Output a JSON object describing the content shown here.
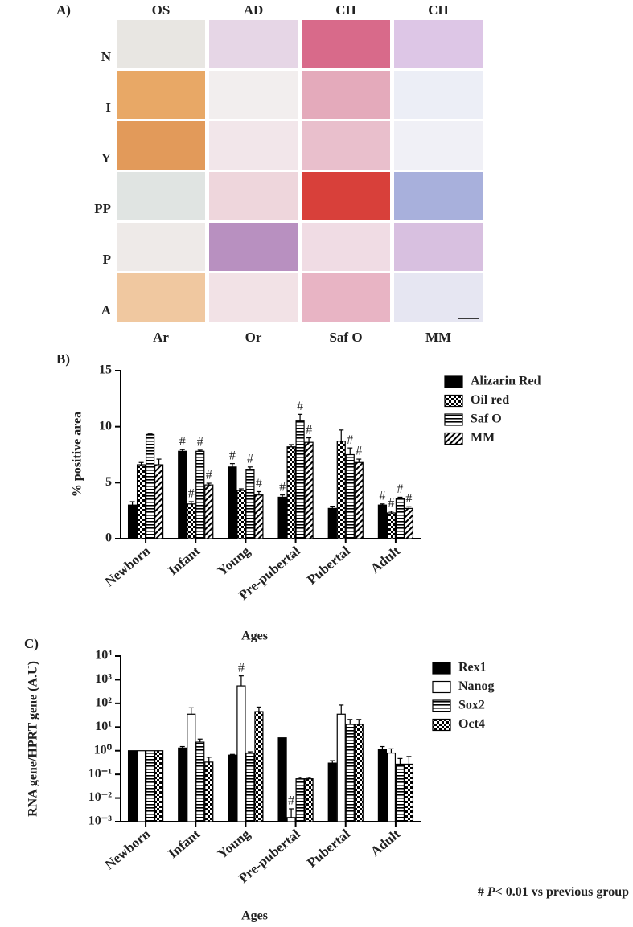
{
  "panel_a": {
    "panel_label": "A)",
    "column_headers": [
      "OS",
      "AD",
      "CH",
      "CH"
    ],
    "row_labels": [
      "N",
      "I",
      "Y",
      "PP",
      "P",
      "A"
    ],
    "stain_labels": [
      "Ar",
      "Or",
      "Saf O",
      "MM"
    ]
  },
  "chart_data": [
    {
      "type": "bar",
      "panel_label": "B)",
      "y_label": "% positive area",
      "x_label": "Ages",
      "categories": [
        "Newborn",
        "Infant",
        "Young",
        "Pre-pubertal",
        "Pubertal",
        "Adult"
      ],
      "ylim": [
        0,
        15
      ],
      "yticks": [
        0,
        5,
        10,
        15
      ],
      "log": false,
      "series": [
        {
          "name": "Alizarin Red",
          "color": "#000000",
          "pattern": "solid",
          "values": [
            3.0,
            7.8,
            6.4,
            3.7,
            2.7,
            3.0
          ],
          "errors": [
            0.3,
            0.15,
            0.3,
            0.2,
            0.2,
            0.1
          ],
          "markers": [
            null,
            "#",
            "#",
            "#",
            null,
            "#"
          ]
        },
        {
          "name": "Oil red",
          "color": "#000000",
          "pattern": "checker",
          "values": [
            6.6,
            3.1,
            4.3,
            8.2,
            8.7,
            2.3
          ],
          "errors": [
            0.2,
            0.2,
            0.15,
            0.2,
            1.0,
            0.15
          ],
          "markers": [
            null,
            "#",
            null,
            null,
            null,
            "#"
          ]
        },
        {
          "name": "Saf O",
          "color": "#000000",
          "pattern": "hstripe",
          "values": [
            9.3,
            7.8,
            6.2,
            10.5,
            7.5,
            3.6
          ],
          "errors": [
            0.05,
            0.1,
            0.2,
            0.6,
            0.6,
            0.1
          ],
          "markers": [
            null,
            "#",
            "#",
            "#",
            "#",
            "#"
          ]
        },
        {
          "name": "MM",
          "color": "#000000",
          "pattern": "diag",
          "values": [
            6.6,
            4.8,
            3.9,
            8.6,
            6.8,
            2.7
          ],
          "errors": [
            0.5,
            0.15,
            0.3,
            0.4,
            0.3,
            0.15
          ],
          "markers": [
            null,
            "#",
            "#",
            "#",
            "#",
            "#"
          ]
        }
      ]
    },
    {
      "type": "bar",
      "panel_label": "C)",
      "y_label": "RNA gene/HPRT gene (A.U)",
      "x_label": "Ages",
      "categories": [
        "Newborn",
        "Infant",
        "Young",
        "Pre-pubertal",
        "Pubertal",
        "Adult"
      ],
      "ylim": [
        0.001,
        10000
      ],
      "log": true,
      "yticks": [
        {
          "value": 0.001,
          "label": "10⁻³"
        },
        {
          "value": 0.01,
          "label": "10⁻²"
        },
        {
          "value": 0.1,
          "label": "10⁻¹"
        },
        {
          "value": 1,
          "label": "10⁰"
        },
        {
          "value": 10,
          "label": "10¹"
        },
        {
          "value": 100,
          "label": "10²"
        },
        {
          "value": 1000,
          "label": "10³"
        },
        {
          "value": 10000,
          "label": "10⁴"
        }
      ],
      "series": [
        {
          "name": "Rex1",
          "color": "#000000",
          "pattern": "solid",
          "values": [
            1,
            1.3,
            0.65,
            3.5,
            0.3,
            1.1
          ],
          "errors": [
            0,
            0.2,
            0.05,
            0,
            0.08,
            0.4
          ],
          "markers": [
            null,
            null,
            null,
            null,
            null,
            null
          ]
        },
        {
          "name": "Nanog",
          "color": "#ffffff",
          "pattern": "solid",
          "values": [
            1,
            35,
            550,
            0.0015,
            35,
            0.8
          ],
          "errors": [
            0,
            30,
            900,
            0.002,
            50,
            0.4
          ],
          "markers": [
            null,
            null,
            "#",
            "#",
            null,
            null
          ]
        },
        {
          "name": "Sox2",
          "color": "#000000",
          "pattern": "hstripe",
          "values": [
            1,
            2.3,
            0.8,
            0.065,
            13,
            0.27
          ],
          "errors": [
            0,
            0.8,
            0.1,
            0.01,
            8,
            0.2
          ],
          "markers": [
            null,
            null,
            null,
            null,
            null,
            null
          ]
        },
        {
          "name": "Oct4",
          "color": "#000000",
          "pattern": "checker",
          "values": [
            1,
            0.33,
            45,
            0.065,
            13,
            0.27
          ],
          "errors": [
            0,
            0.2,
            25,
            0.01,
            8,
            0.3
          ],
          "markers": [
            null,
            null,
            null,
            null,
            null,
            null
          ]
        }
      ]
    }
  ],
  "footnote": [
    "# ",
    "P",
    "< 0.01 vs previous group"
  ]
}
